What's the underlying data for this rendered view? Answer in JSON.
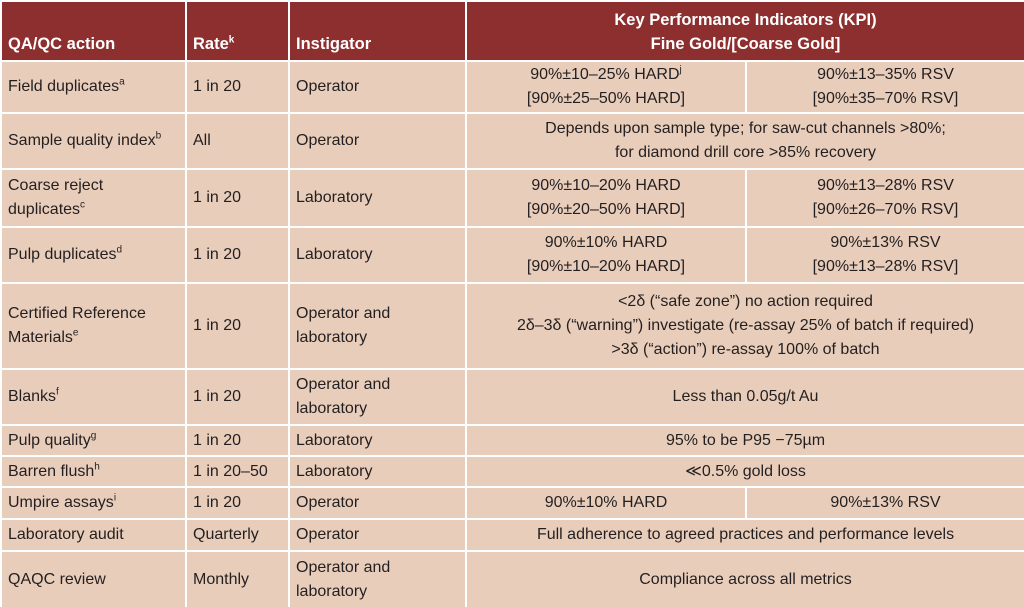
{
  "table": {
    "header": {
      "action": "QA/QC action",
      "rate": "Rate",
      "rate_sup": "k",
      "instigator": "Instigator",
      "kpi": [
        "Key Performance Indicators (KPI)",
        "Fine Gold/[Coarse Gold]"
      ]
    },
    "rows": [
      {
        "action": "Field duplicates",
        "sup": "a",
        "rate": "1 in 20",
        "instigator": "Operator",
        "fine": [
          "90%±10–25% HARD",
          "[90%±25–50% HARD]"
        ],
        "fine_sup": "j",
        "coarse": [
          "90%±13–35% RSV",
          "[90%±35–70% RSV]"
        ]
      },
      {
        "action": "Sample quality index",
        "sup": "b",
        "rate": "All",
        "instigator": "Operator",
        "kpi": [
          "Depends upon sample type; for saw-cut channels >80%;",
          "for diamond drill core >85% recovery"
        ]
      },
      {
        "action": "Coarse reject duplicates",
        "sup": "c",
        "rate": "1 in 20",
        "instigator": "Laboratory",
        "fine": [
          "90%±10–20% HARD",
          "[90%±20–50% HARD]"
        ],
        "coarse": [
          "90%±13–28% RSV",
          "[90%±26–70% RSV]"
        ]
      },
      {
        "action": "Pulp duplicates",
        "sup": "d",
        "rate": "1 in 20",
        "instigator": "Laboratory",
        "fine": [
          "90%±10% HARD",
          "[90%±10–20% HARD]"
        ],
        "coarse": [
          "90%±13% RSV",
          "[90%±13–28% RSV]"
        ]
      },
      {
        "action": "Certified Reference Materials",
        "sup": "e",
        "rate": "1 in 20",
        "instigator": "Operator and laboratory",
        "kpi": [
          "<2δ (“safe zone”) no action required",
          "2δ–3δ (“warning”) investigate (re-assay 25% of batch if required)",
          ">3δ (“action”) re-assay 100% of batch"
        ]
      },
      {
        "action": "Blanks",
        "sup": "f",
        "rate": "1 in 20",
        "instigator": "Operator and laboratory",
        "kpi": [
          "Less than 0.05g/t Au"
        ]
      },
      {
        "action": "Pulp quality",
        "sup": "g",
        "rate": "1 in 20",
        "instigator": "Laboratory",
        "kpi": [
          "95% to be P95 −75µm"
        ]
      },
      {
        "action": "Barren flush",
        "sup": "h",
        "rate": "1 in 20–50",
        "instigator": "Laboratory",
        "kpi": [
          "≪0.5% gold loss"
        ]
      },
      {
        "action": "Umpire assays",
        "sup": "i",
        "rate": "1 in 20",
        "instigator": "Operator",
        "fine": [
          "90%±10% HARD"
        ],
        "coarse": [
          "90%±13% RSV"
        ]
      },
      {
        "action": "Laboratory audit",
        "rate": "Quarterly",
        "instigator": "Operator",
        "kpi": [
          "Full adherence to agreed practices and performance levels"
        ]
      },
      {
        "action": "QAQC review",
        "rate": "Monthly",
        "instigator": "Operator and laboratory",
        "kpi": [
          "Compliance across all metrics"
        ]
      }
    ]
  }
}
